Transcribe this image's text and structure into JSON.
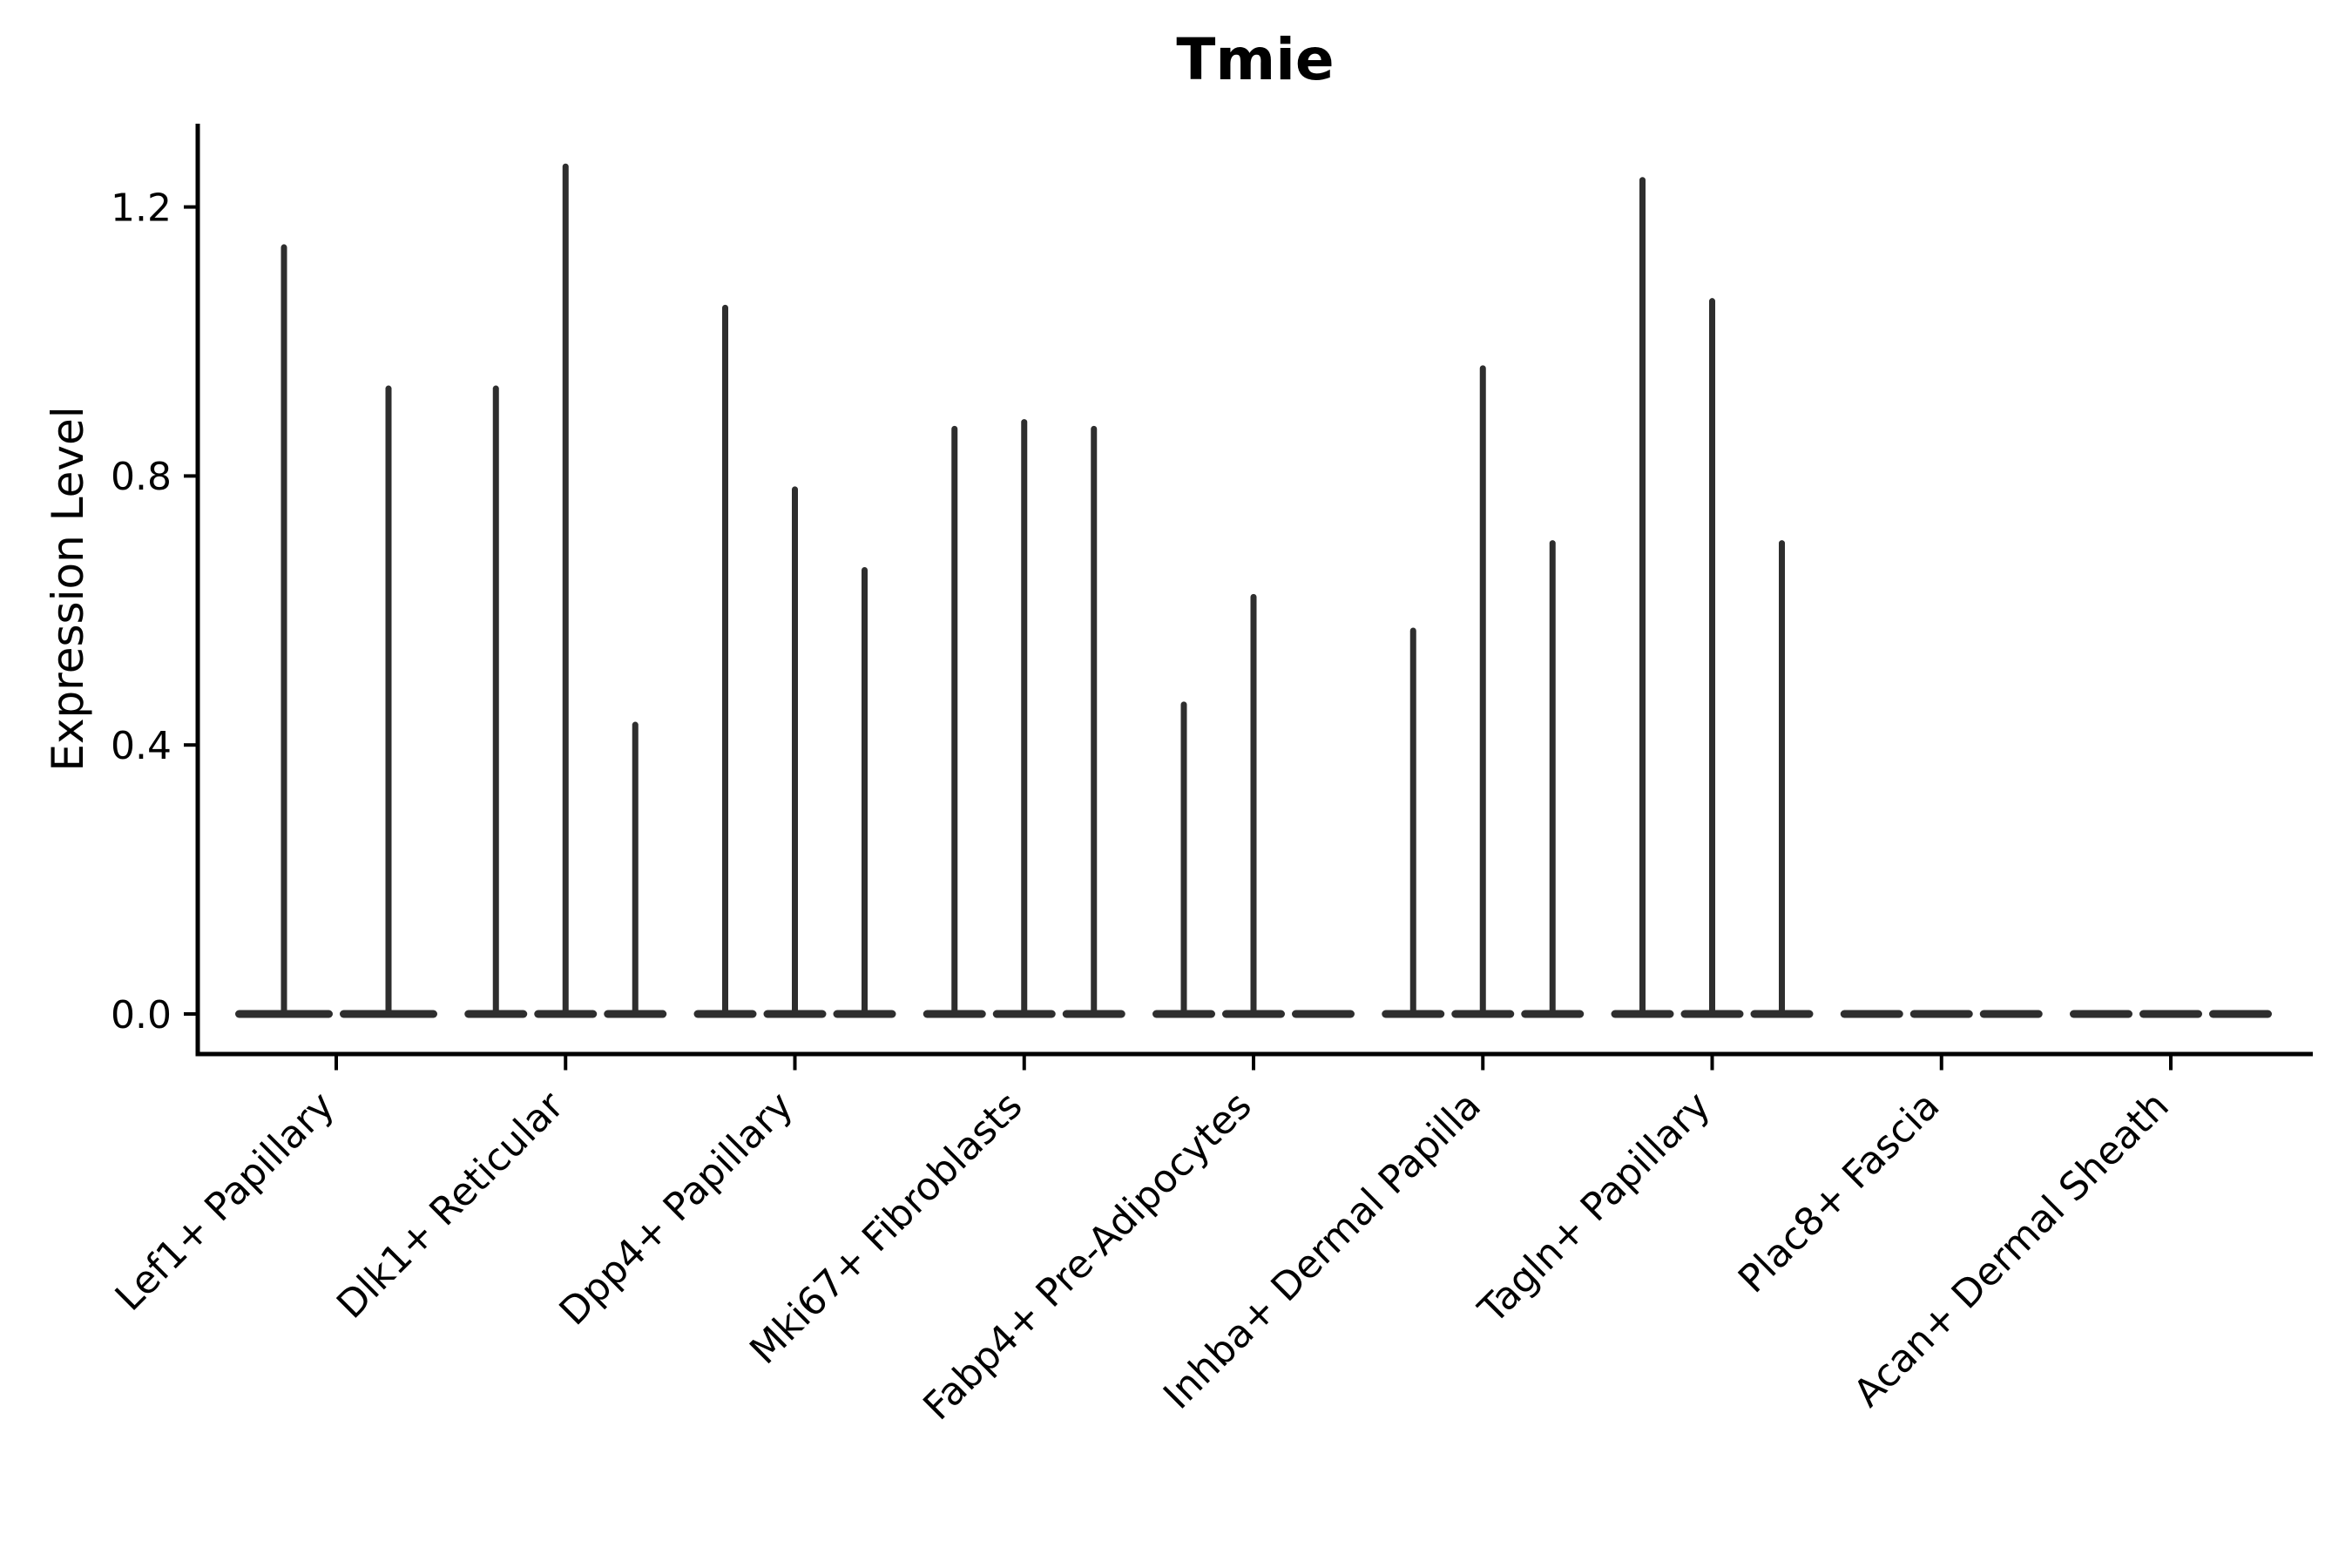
{
  "title": "Tmie",
  "y_axis": {
    "label": "Expression Level",
    "tick_labels": [
      "0.0",
      "0.4",
      "0.8",
      "1.2"
    ],
    "tick_values": [
      0.0,
      0.4,
      0.8,
      1.2
    ]
  },
  "chart_data": {
    "type": "violin",
    "title": "Tmie",
    "xlabel": "",
    "ylabel": "Expression Level",
    "ylim": [
      0,
      1.32
    ],
    "yticks": [
      0.0,
      0.4,
      0.8,
      1.2
    ],
    "grid": false,
    "legend_position": "none",
    "x_tick_rotation": 45,
    "categories": [
      "Lef1+ Papillary",
      "Dlk1+ Reticular",
      "Dpp4+ Papillary",
      "Mki67+ Fibroblasts",
      "Fabp4+ Pre-Adipocytes",
      "Inhba+ Dermal Papilla",
      "Tagln+ Papillary",
      "Plac8+ Fascia",
      "Acan+ Dermal Sheath"
    ],
    "groups": [
      {
        "label": "Lef1+ Papillary",
        "violin_maxima": [
          1.14,
          0.93
        ]
      },
      {
        "label": "Dlk1+ Reticular",
        "violin_maxima": [
          0.93,
          1.26,
          0.43
        ]
      },
      {
        "label": "Dpp4+ Papillary",
        "violin_maxima": [
          1.05,
          0.78,
          0.66
        ]
      },
      {
        "label": "Mki67+ Fibroblasts",
        "violin_maxima": [
          0.87,
          0.88,
          0.87
        ]
      },
      {
        "label": "Fabp4+ Pre-Adipocytes",
        "violin_maxima": [
          0.46,
          0.62,
          0.0
        ]
      },
      {
        "label": "Inhba+ Dermal Papilla",
        "violin_maxima": [
          0.57,
          0.96,
          0.7
        ]
      },
      {
        "label": "Tagln+ Papillary",
        "violin_maxima": [
          1.24,
          1.06,
          0.7
        ]
      },
      {
        "label": "Plac8+ Fascia",
        "violin_maxima": [
          0.0,
          0.0,
          0.0
        ]
      },
      {
        "label": "Acan+ Dermal Sheath",
        "violin_maxima": [
          0.0,
          0.0,
          0.0
        ]
      }
    ],
    "description": "All violins are near-zero-width density spikes rising from flat bases at expression level 0"
  },
  "colors": {
    "violin": "#2e2e2e",
    "axis": "#000000",
    "text": "#000000",
    "background": "#ffffff"
  }
}
